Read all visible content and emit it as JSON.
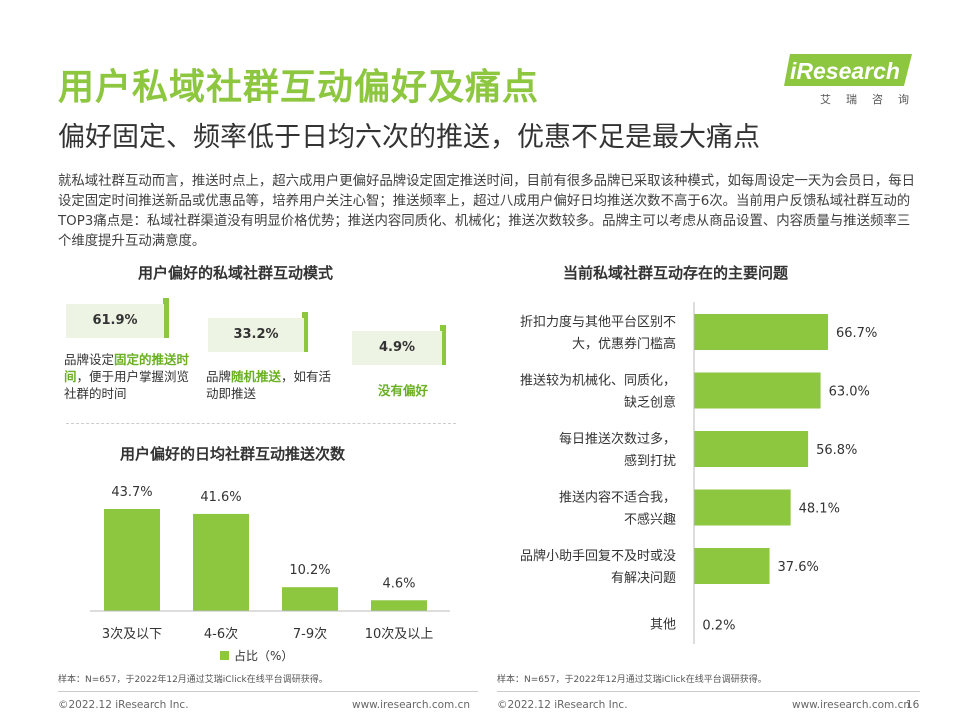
{
  "header": {
    "title": "用户私域社群互动偏好及痛点",
    "subtitle": "偏好固定、频率低于日均六次的推送，优惠不足是最大痛点",
    "description": "就私域社群互动而言，推送时点上，超六成用户更偏好品牌设定固定推送时间，目前有很多品牌已采取该种模式，如每周设定一天为会员日，每日设定固定时间推送新品或优惠品等，培养用户关注心智；推送频率上，超过八成用户偏好日均推送次数不高于6次。当前用户反馈私域社群互动的TOP3痛点是：私域社群渠道没有明显价格优势；推送内容同质化、机械化；推送次数较多。品牌主可以考虑从商品设置、内容质量与推送频率三个维度提升互动满意度。"
  },
  "logo": {
    "brand": "iResearch",
    "sub": "艾瑞咨询",
    "color": "#8dc63f"
  },
  "colors": {
    "accent": "#8dc63f",
    "highlight": "#6ab023"
  },
  "modes": {
    "title": "用户偏好的私域社群互动模式",
    "items": [
      {
        "value": "61.9%",
        "label_pre": "品牌设定",
        "label_hl": "固定的推送时间",
        "label_post": "，便于用户掌握浏览社群的时间"
      },
      {
        "value": "33.2%",
        "label_pre": "品牌",
        "label_hl": "随机推送",
        "label_post": "，如有活动即推送"
      },
      {
        "value": "4.9%",
        "label_pre": "",
        "label_hl": "没有偏好",
        "label_post": ""
      }
    ]
  },
  "chart_data": [
    {
      "type": "bar",
      "title": "用户偏好的日均社群互动推送次数",
      "categories": [
        "3次及以下",
        "4-6次",
        "7-9次",
        "10次及以上"
      ],
      "series": [
        {
          "name": "占比（%）",
          "values": [
            43.7,
            41.6,
            10.2,
            4.6
          ]
        }
      ],
      "value_labels": [
        "43.7%",
        "41.6%",
        "10.2%",
        "4.6%"
      ],
      "ylim": [
        0,
        43.7
      ],
      "legend": "bottom",
      "grid": false
    },
    {
      "type": "bar",
      "orientation": "horizontal",
      "title": "当前私域社群互动存在的主要问题",
      "categories": [
        [
          "折扣力度与其他平台区别不",
          "大，优惠券门槛高"
        ],
        [
          "推送较为机械化、同质化，",
          "缺乏创意"
        ],
        [
          "每日推送次数过多，",
          "感到打扰"
        ],
        [
          "推送内容不适合我，",
          "不感兴趣"
        ],
        [
          "品牌小助手回复不及时或没",
          "有解决问题"
        ],
        [
          "其他"
        ]
      ],
      "values": [
        66.7,
        63.0,
        56.8,
        48.1,
        37.6,
        0.2
      ],
      "value_labels": [
        "66.7%",
        "63.0%",
        "56.8%",
        "48.1%",
        "37.6%",
        "0.2%"
      ],
      "xlim": [
        0,
        66.7
      ],
      "grid": false
    }
  ],
  "sources": {
    "left": "样本：N=657，于2022年12月通过艾瑞iClick在线平台调研获得。",
    "right": "样本：N=657，于2022年12月通过艾瑞iClick在线平台调研获得。"
  },
  "footer": {
    "copyright_left": "©2022.12 iResearch Inc.",
    "url_left": "www.iresearch.com.cn",
    "copyright_right": "©2022.12 iResearch Inc.",
    "url_right": "www.iresearch.com.cn",
    "page_number": "16"
  }
}
